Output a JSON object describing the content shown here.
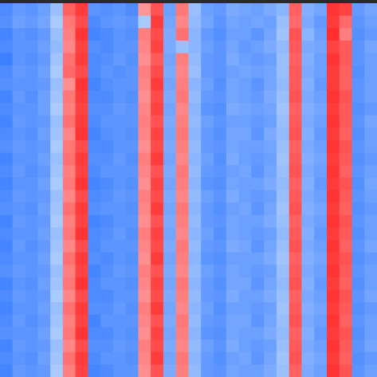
{
  "chart_data": {
    "type": "heatmap",
    "rows": 30,
    "cols": 30,
    "value_range": [
      -1,
      1
    ],
    "color_scale": {
      "low": "#1f6bff",
      "mid": "#b8d4ff",
      "high_mid": "#ffb3b3",
      "high": "#ff1e1e"
    },
    "column_means": [
      -0.72,
      -0.58,
      -0.62,
      -0.52,
      -0.15,
      0.38,
      0.78,
      -0.7,
      -0.66,
      -0.6,
      -0.62,
      0.3,
      0.72,
      -0.42,
      0.34,
      -0.28,
      -0.55,
      -0.62,
      -0.45,
      -0.48,
      -0.55,
      -0.45,
      -0.2,
      0.6,
      -0.38,
      -0.5,
      0.82,
      0.62,
      -0.62,
      -0.5
    ],
    "values": [
      [
        -0.7,
        -0.55,
        -0.6,
        -0.5,
        -0.2,
        0.55,
        0.8,
        -0.6,
        -0.65,
        -0.6,
        -0.7,
        0.2,
        0.65,
        -0.5,
        0.4,
        -0.2,
        -0.5,
        -0.55,
        -0.4,
        -0.45,
        -0.5,
        -0.4,
        -0.3,
        0.55,
        -0.35,
        -0.45,
        0.85,
        0.75,
        -0.55,
        -0.45
      ],
      [
        -0.65,
        -0.5,
        -0.55,
        -0.45,
        -0.1,
        0.4,
        0.7,
        -0.7,
        -0.6,
        -0.55,
        -0.6,
        -0.1,
        0.8,
        -0.45,
        0.3,
        -0.25,
        -0.45,
        -0.6,
        -0.45,
        -0.5,
        -0.45,
        -0.5,
        -0.2,
        0.5,
        -0.4,
        -0.55,
        0.8,
        0.5,
        -0.6,
        -0.5
      ],
      [
        -0.75,
        -0.6,
        -0.65,
        -0.55,
        -0.2,
        0.35,
        0.85,
        -0.75,
        -0.7,
        -0.6,
        -0.65,
        0.35,
        0.7,
        -0.4,
        0.45,
        -0.3,
        -0.55,
        -0.65,
        -0.5,
        -0.5,
        -0.6,
        -0.45,
        -0.15,
        0.65,
        -0.3,
        -0.5,
        0.9,
        0.35,
        -0.65,
        -0.55
      ],
      [
        -0.7,
        -0.6,
        -0.6,
        -0.5,
        -0.25,
        0.3,
        0.75,
        -0.65,
        -0.7,
        -0.6,
        -0.6,
        0.3,
        0.75,
        -0.4,
        -0.2,
        -0.3,
        -0.5,
        -0.6,
        -0.45,
        -0.55,
        -0.5,
        -0.4,
        -0.25,
        0.6,
        -0.4,
        -0.45,
        0.75,
        0.6,
        -0.6,
        -0.45
      ],
      [
        -0.8,
        -0.6,
        -0.65,
        -0.55,
        -0.15,
        0.45,
        0.8,
        -0.7,
        -0.65,
        -0.55,
        -0.65,
        0.25,
        0.6,
        -0.45,
        0.35,
        -0.25,
        -0.55,
        -0.6,
        -0.4,
        -0.5,
        -0.55,
        -0.5,
        -0.2,
        0.55,
        -0.35,
        -0.5,
        0.85,
        0.6,
        -0.6,
        -0.5
      ],
      [
        -0.7,
        -0.55,
        -0.6,
        -0.5,
        -0.1,
        0.5,
        0.7,
        -0.7,
        -0.6,
        -0.65,
        -0.6,
        0.35,
        0.7,
        -0.4,
        0.3,
        -0.2,
        -0.55,
        -0.6,
        -0.5,
        -0.45,
        -0.5,
        -0.45,
        -0.2,
        0.6,
        -0.4,
        -0.5,
        0.8,
        0.55,
        -0.65,
        -0.5
      ],
      [
        -0.65,
        -0.6,
        -0.6,
        -0.55,
        -0.2,
        0.25,
        0.85,
        -0.75,
        -0.65,
        -0.6,
        -0.6,
        0.3,
        0.8,
        -0.45,
        0.35,
        -0.3,
        -0.5,
        -0.65,
        -0.45,
        -0.5,
        -0.6,
        -0.45,
        -0.25,
        0.6,
        -0.35,
        -0.55,
        0.8,
        0.55,
        -0.6,
        -0.5
      ],
      [
        -0.75,
        -0.55,
        -0.65,
        -0.5,
        -0.15,
        0.4,
        0.8,
        -0.7,
        -0.7,
        -0.6,
        -0.65,
        0.25,
        0.7,
        -0.4,
        0.4,
        -0.25,
        -0.55,
        -0.6,
        -0.45,
        -0.5,
        -0.55,
        -0.4,
        -0.2,
        0.65,
        -0.4,
        -0.5,
        0.85,
        0.65,
        -0.6,
        -0.5
      ],
      [
        -0.7,
        -0.6,
        -0.6,
        -0.5,
        -0.1,
        0.35,
        0.75,
        -0.65,
        -0.65,
        -0.55,
        -0.6,
        0.3,
        0.75,
        -0.45,
        0.3,
        -0.3,
        -0.6,
        -0.65,
        -0.4,
        -0.45,
        -0.5,
        -0.45,
        -0.15,
        0.55,
        -0.35,
        -0.45,
        0.8,
        0.6,
        -0.65,
        -0.55
      ],
      [
        -0.75,
        -0.55,
        -0.6,
        -0.55,
        -0.2,
        0.45,
        0.8,
        -0.7,
        -0.6,
        -0.6,
        -0.6,
        0.35,
        0.65,
        -0.4,
        0.35,
        -0.25,
        -0.5,
        -0.6,
        -0.5,
        -0.5,
        -0.55,
        -0.5,
        -0.2,
        0.6,
        -0.4,
        -0.5,
        0.85,
        0.6,
        -0.6,
        -0.45
      ],
      [
        -0.7,
        -0.6,
        -0.65,
        -0.5,
        -0.15,
        0.3,
        0.85,
        -0.75,
        -0.65,
        -0.6,
        -0.65,
        0.3,
        0.75,
        -0.45,
        0.4,
        -0.3,
        -0.55,
        -0.65,
        -0.45,
        -0.45,
        -0.6,
        -0.4,
        -0.25,
        0.65,
        -0.35,
        -0.55,
        0.8,
        0.55,
        -0.65,
        -0.5
      ],
      [
        -0.65,
        -0.55,
        -0.6,
        -0.55,
        -0.1,
        0.4,
        0.7,
        -0.7,
        -0.7,
        -0.6,
        -0.6,
        0.25,
        0.7,
        -0.4,
        0.35,
        -0.25,
        -0.55,
        -0.6,
        -0.45,
        -0.5,
        -0.5,
        -0.45,
        -0.2,
        0.55,
        -0.4,
        -0.5,
        0.85,
        0.65,
        -0.6,
        -0.5
      ],
      [
        -0.75,
        -0.6,
        -0.6,
        -0.5,
        -0.2,
        0.45,
        0.8,
        -0.65,
        -0.65,
        -0.55,
        -0.65,
        0.35,
        0.8,
        -0.45,
        0.3,
        -0.3,
        -0.5,
        -0.65,
        -0.4,
        -0.5,
        -0.55,
        -0.5,
        -0.15,
        0.6,
        -0.35,
        -0.45,
        0.8,
        0.6,
        -0.65,
        -0.55
      ],
      [
        -0.7,
        -0.55,
        -0.65,
        -0.55,
        -0.15,
        0.35,
        0.75,
        -0.7,
        -0.6,
        -0.6,
        -0.6,
        0.3,
        0.65,
        -0.4,
        0.4,
        -0.25,
        -0.55,
        -0.6,
        -0.5,
        -0.45,
        -0.6,
        -0.45,
        -0.2,
        0.65,
        -0.4,
        -0.5,
        0.85,
        0.55,
        -0.6,
        -0.5
      ],
      [
        -0.75,
        -0.6,
        -0.6,
        -0.5,
        -0.1,
        0.4,
        0.85,
        -0.75,
        -0.7,
        -0.6,
        -0.65,
        0.25,
        0.75,
        -0.45,
        0.35,
        -0.3,
        -0.6,
        -0.65,
        -0.45,
        -0.5,
        -0.5,
        -0.4,
        -0.25,
        0.55,
        -0.35,
        -0.55,
        0.8,
        0.65,
        -0.65,
        -0.45
      ],
      [
        -0.7,
        -0.55,
        -0.6,
        -0.55,
        -0.2,
        0.3,
        0.7,
        -0.7,
        -0.65,
        -0.55,
        -0.6,
        0.35,
        0.7,
        -0.4,
        0.3,
        -0.25,
        -0.5,
        -0.6,
        -0.4,
        -0.5,
        -0.55,
        -0.5,
        -0.2,
        0.6,
        -0.4,
        -0.5,
        0.85,
        0.6,
        -0.6,
        -0.5
      ],
      [
        -0.65,
        -0.6,
        -0.65,
        -0.5,
        -0.15,
        0.45,
        0.8,
        -0.65,
        -0.6,
        -0.6,
        -0.65,
        0.3,
        0.8,
        -0.45,
        0.4,
        -0.3,
        -0.55,
        -0.65,
        -0.5,
        -0.45,
        -0.6,
        -0.45,
        -0.15,
        0.65,
        -0.35,
        -0.45,
        0.8,
        0.55,
        -0.65,
        -0.55
      ],
      [
        -0.75,
        -0.55,
        -0.6,
        -0.55,
        -0.1,
        0.35,
        0.75,
        -0.75,
        -0.7,
        -0.6,
        -0.6,
        0.25,
        0.65,
        -0.4,
        0.35,
        -0.25,
        -0.55,
        -0.6,
        -0.45,
        -0.5,
        -0.5,
        -0.4,
        -0.2,
        0.55,
        -0.4,
        -0.5,
        0.85,
        0.65,
        -0.6,
        -0.5
      ],
      [
        -0.7,
        -0.6,
        -0.6,
        -0.5,
        -0.2,
        0.4,
        0.85,
        -0.7,
        -0.65,
        -0.55,
        -0.65,
        0.35,
        0.75,
        -0.45,
        0.3,
        -0.3,
        -0.5,
        -0.65,
        -0.45,
        -0.5,
        -0.55,
        -0.5,
        -0.25,
        0.6,
        -0.35,
        -0.55,
        0.8,
        0.6,
        -0.65,
        -0.5
      ],
      [
        -0.75,
        -0.55,
        -0.65,
        -0.55,
        -0.15,
        0.3,
        0.7,
        -0.7,
        -0.6,
        -0.6,
        -0.6,
        0.3,
        0.7,
        -0.4,
        0.4,
        -0.25,
        -0.55,
        -0.6,
        -0.4,
        -0.45,
        -0.6,
        -0.45,
        -0.2,
        0.65,
        -0.4,
        -0.5,
        0.85,
        0.55,
        -0.6,
        -0.45
      ],
      [
        -0.7,
        -0.6,
        -0.6,
        -0.5,
        -0.1,
        0.45,
        0.8,
        -0.65,
        -0.7,
        -0.6,
        -0.65,
        0.25,
        0.8,
        -0.45,
        0.35,
        -0.3,
        -0.6,
        -0.65,
        -0.5,
        -0.5,
        -0.5,
        -0.4,
        -0.15,
        0.55,
        -0.35,
        -0.45,
        0.8,
        0.65,
        -0.65,
        -0.55
      ],
      [
        -0.65,
        -0.55,
        -0.6,
        -0.55,
        -0.2,
        0.35,
        0.75,
        -0.75,
        -0.65,
        -0.55,
        -0.6,
        0.35,
        0.65,
        -0.4,
        0.3,
        -0.25,
        -0.5,
        -0.6,
        -0.45,
        -0.5,
        -0.55,
        -0.5,
        -0.2,
        0.6,
        -0.4,
        -0.5,
        0.85,
        0.6,
        -0.6,
        -0.5
      ],
      [
        -0.75,
        -0.6,
        -0.65,
        -0.5,
        -0.15,
        0.4,
        0.85,
        -0.7,
        -0.6,
        -0.6,
        -0.65,
        0.3,
        0.75,
        -0.45,
        0.4,
        -0.3,
        -0.55,
        -0.65,
        -0.45,
        -0.45,
        -0.6,
        -0.45,
        -0.25,
        0.65,
        -0.35,
        -0.55,
        0.8,
        0.55,
        -0.65,
        -0.5
      ],
      [
        -0.7,
        -0.55,
        -0.6,
        -0.55,
        -0.1,
        0.3,
        0.7,
        -0.7,
        -0.7,
        -0.6,
        -0.6,
        0.25,
        0.7,
        -0.4,
        0.35,
        -0.25,
        -0.55,
        -0.6,
        -0.4,
        -0.5,
        -0.5,
        -0.4,
        -0.2,
        0.55,
        -0.4,
        -0.5,
        0.85,
        0.65,
        -0.6,
        -0.45
      ],
      [
        -0.75,
        -0.6,
        -0.6,
        -0.5,
        -0.2,
        0.45,
        0.8,
        -0.65,
        -0.65,
        -0.55,
        -0.65,
        0.35,
        0.8,
        -0.45,
        0.3,
        -0.3,
        -0.5,
        -0.65,
        -0.5,
        -0.5,
        -0.55,
        -0.5,
        -0.15,
        0.6,
        -0.35,
        -0.45,
        0.8,
        0.6,
        -0.65,
        -0.55
      ],
      [
        -0.7,
        -0.55,
        -0.65,
        -0.55,
        -0.15,
        0.35,
        0.75,
        -0.75,
        -0.6,
        -0.6,
        -0.6,
        0.3,
        0.65,
        -0.4,
        0.4,
        -0.25,
        -0.55,
        -0.6,
        -0.45,
        -0.45,
        -0.6,
        -0.45,
        -0.2,
        0.65,
        -0.4,
        -0.5,
        0.85,
        0.55,
        -0.6,
        -0.5
      ],
      [
        -0.65,
        -0.6,
        -0.6,
        -0.5,
        -0.1,
        0.4,
        0.85,
        -0.7,
        -0.7,
        -0.6,
        -0.65,
        0.25,
        0.75,
        -0.45,
        0.35,
        -0.3,
        -0.6,
        -0.65,
        -0.45,
        -0.5,
        -0.5,
        -0.4,
        -0.25,
        0.55,
        -0.35,
        -0.55,
        0.8,
        0.65,
        -0.65,
        -0.5
      ],
      [
        -0.75,
        -0.55,
        -0.6,
        -0.55,
        -0.2,
        0.3,
        0.7,
        -0.65,
        -0.65,
        -0.55,
        -0.6,
        0.35,
        0.7,
        -0.4,
        0.3,
        -0.25,
        -0.5,
        -0.6,
        -0.4,
        -0.5,
        -0.55,
        -0.5,
        -0.2,
        0.6,
        -0.4,
        -0.5,
        0.85,
        0.6,
        -0.6,
        -0.45
      ],
      [
        -0.7,
        -0.6,
        -0.65,
        -0.5,
        -0.15,
        0.45,
        0.8,
        -0.7,
        -0.6,
        -0.6,
        -0.65,
        0.3,
        0.8,
        -0.45,
        0.4,
        -0.3,
        -0.55,
        -0.65,
        -0.5,
        -0.45,
        -0.6,
        -0.45,
        -0.15,
        0.65,
        -0.35,
        -0.45,
        0.8,
        0.55,
        -0.65,
        -0.55
      ],
      [
        -0.75,
        -0.55,
        -0.6,
        -0.55,
        -0.1,
        0.35,
        0.75,
        -0.75,
        -0.7,
        -0.6,
        -0.6,
        0.25,
        0.65,
        -0.4,
        0.35,
        -0.25,
        -0.55,
        -0.6,
        -0.45,
        -0.5,
        -0.5,
        -0.4,
        -0.2,
        0.55,
        -0.4,
        -0.5,
        0.85,
        0.65,
        -0.6,
        -0.5
      ]
    ]
  }
}
